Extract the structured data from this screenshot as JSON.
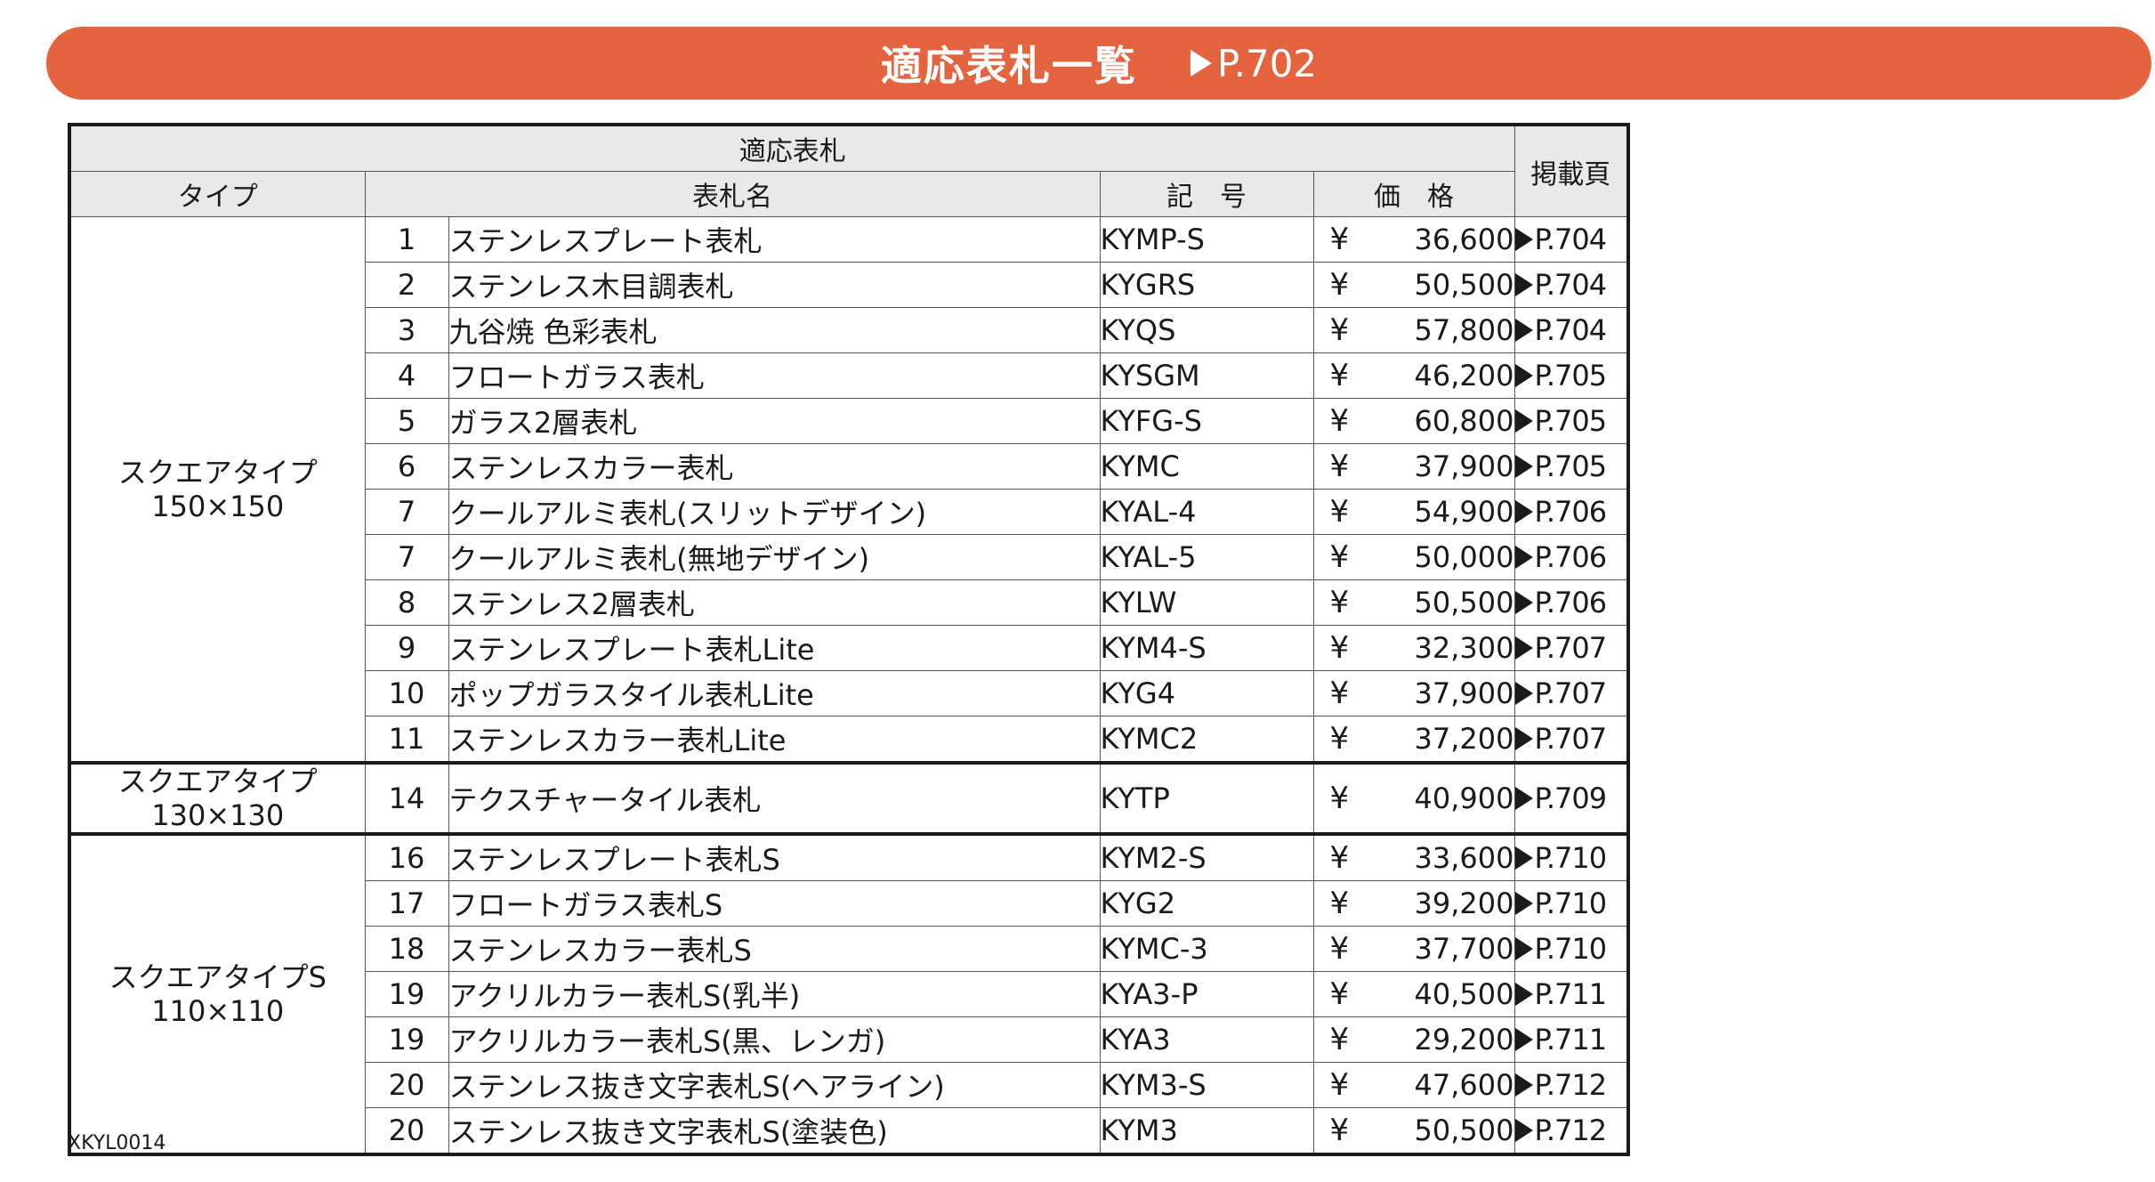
{
  "banner": {
    "title": "適応表札一覧",
    "ref": "P.702"
  },
  "table": {
    "header": {
      "group": "適応表札",
      "type": "タイプ",
      "name": "表札名",
      "code": "記　号",
      "price": "価　格",
      "page": "掲載頁"
    },
    "currency": "¥",
    "groups": [
      {
        "type_line1": "スクエアタイプ",
        "type_line2": "150×150",
        "rows": [
          {
            "no": "1",
            "name": "ステンレスプレート表札",
            "code": "KYMP-S",
            "price": "36,600",
            "page": "P.704"
          },
          {
            "no": "2",
            "name": "ステンレス木目調表札",
            "code": "KYGRS",
            "price": "50,500",
            "page": "P.704"
          },
          {
            "no": "3",
            "name": "九谷焼  色彩表札",
            "code": "KYQS",
            "price": "57,800",
            "page": "P.704"
          },
          {
            "no": "4",
            "name": "フロートガラス表札",
            "code": "KYSGM",
            "price": "46,200",
            "page": "P.705"
          },
          {
            "no": "5",
            "name": "ガラス2層表札",
            "code": "KYFG-S",
            "price": "60,800",
            "page": "P.705"
          },
          {
            "no": "6",
            "name": "ステンレスカラー表札",
            "code": "KYMC",
            "price": "37,900",
            "page": "P.705"
          },
          {
            "no": "7",
            "name": "クールアルミ表札(スリットデザイン)",
            "code": "KYAL-4",
            "price": "54,900",
            "page": "P.706"
          },
          {
            "no": "7",
            "name": "クールアルミ表札(無地デザイン)",
            "code": "KYAL-5",
            "price": "50,000",
            "page": "P.706"
          },
          {
            "no": "8",
            "name": "ステンレス2層表札",
            "code": "KYLW",
            "price": "50,500",
            "page": "P.706"
          },
          {
            "no": "9",
            "name": "ステンレスプレート表札Lite",
            "code": "KYM4-S",
            "price": "32,300",
            "page": "P.707"
          },
          {
            "no": "10",
            "name": "ポップガラスタイル表札Lite",
            "code": "KYG4",
            "price": "37,900",
            "page": "P.707"
          },
          {
            "no": "11",
            "name": "ステンレスカラー表札Lite",
            "code": "KYMC2",
            "price": "37,200",
            "page": "P.707"
          }
        ]
      },
      {
        "type_line1": "スクエアタイプ",
        "type_line2": "130×130",
        "rows": [
          {
            "no": "14",
            "name": "テクスチャータイル表札",
            "code": "KYTP",
            "price": "40,900",
            "page": "P.709"
          }
        ]
      },
      {
        "type_line1": "スクエアタイプS",
        "type_line2": "110×110",
        "rows": [
          {
            "no": "16",
            "name": "ステンレスプレート表札S",
            "code": "KYM2-S",
            "price": "33,600",
            "page": "P.710"
          },
          {
            "no": "17",
            "name": "フロートガラス表札S",
            "code": "KYG2",
            "price": "39,200",
            "page": "P.710"
          },
          {
            "no": "18",
            "name": "ステンレスカラー表札S",
            "code": "KYMC-3",
            "price": "37,700",
            "page": "P.710"
          },
          {
            "no": "19",
            "name": "アクリルカラー表札S(乳半)",
            "code": "KYA3-P",
            "price": "40,500",
            "page": "P.711"
          },
          {
            "no": "19",
            "name": "アクリルカラー表札S(黒、レンガ)",
            "code": "KYA3",
            "price": "29,200",
            "page": "P.711"
          },
          {
            "no": "20",
            "name": "ステンレス抜き文字表札S(ヘアライン)",
            "code": "KYM3-S",
            "price": "47,600",
            "page": "P.712"
          },
          {
            "no": "20",
            "name": "ステンレス抜き文字表札S(塗装色)",
            "code": "KYM3",
            "price": "50,500",
            "page": "P.712"
          }
        ]
      }
    ]
  },
  "footer": {
    "code": "XKYL0014"
  },
  "colors": {
    "banner": "#e4643f",
    "header_bg": "#e9e9e9",
    "border": "#1a1a1a"
  }
}
